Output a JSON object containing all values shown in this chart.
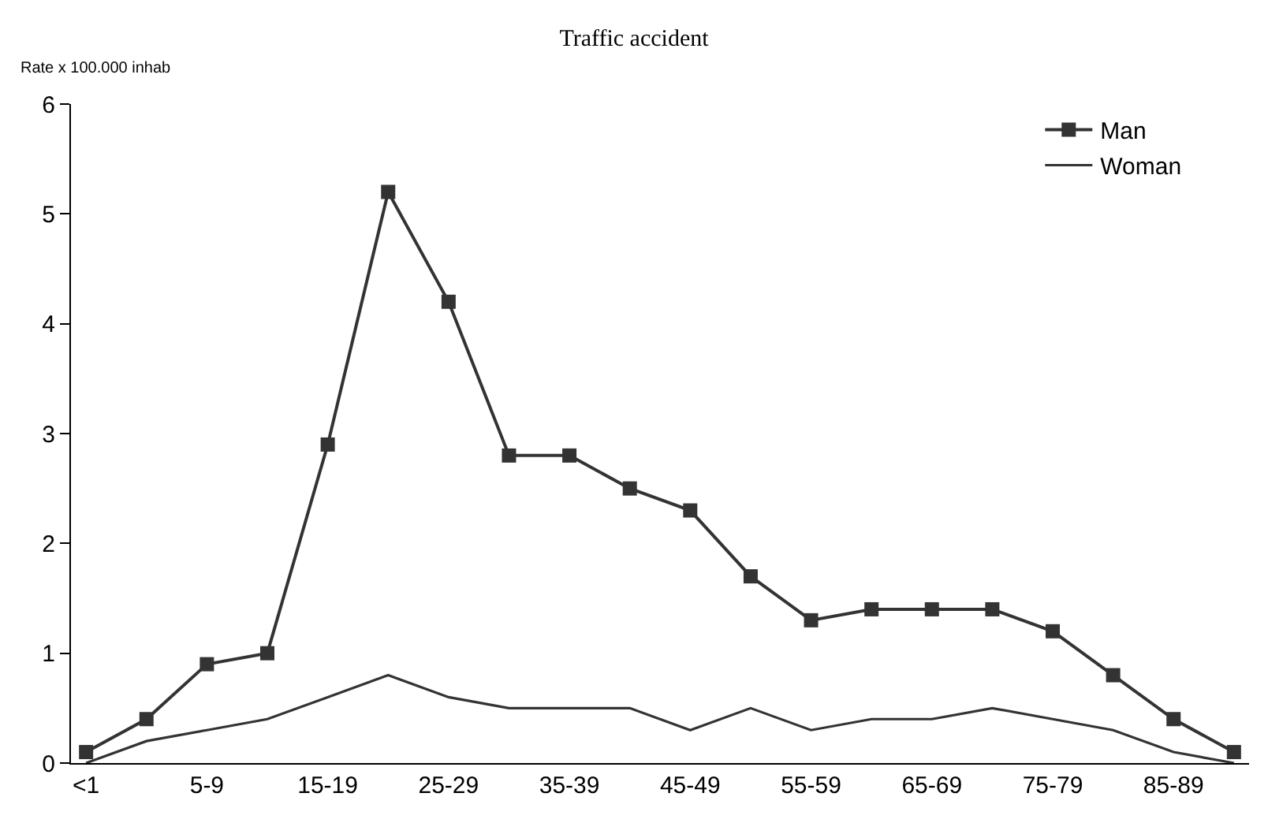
{
  "chart_data": {
    "type": "line",
    "title": "Traffic accident",
    "ylabel": "Rate x 100.000 inhab",
    "categories": [
      "<1",
      null,
      "5-9",
      null,
      "15-19",
      null,
      "25-29",
      null,
      "35-39",
      null,
      "45-49",
      null,
      "55-59",
      null,
      "65-69",
      null,
      "75-79",
      null,
      "85-89",
      null
    ],
    "series": [
      {
        "name": "Man",
        "color": "#333333",
        "marker": "square",
        "values": [
          0.1,
          0.4,
          0.9,
          1.0,
          2.9,
          5.2,
          4.2,
          2.8,
          2.8,
          2.5,
          2.3,
          1.7,
          1.3,
          1.4,
          1.4,
          1.4,
          1.2,
          0.8,
          0.4,
          0.1
        ]
      },
      {
        "name": "Woman",
        "color": "#333333",
        "marker": "none",
        "values": [
          0.0,
          0.2,
          0.3,
          0.4,
          0.6,
          0.8,
          0.6,
          0.5,
          0.5,
          0.5,
          0.3,
          0.5,
          0.3,
          0.4,
          0.4,
          0.5,
          0.4,
          0.3,
          0.1,
          0.0
        ]
      }
    ],
    "ylim": [
      0,
      6
    ],
    "yticks": [
      0,
      1,
      2,
      3,
      4,
      5,
      6
    ],
    "legend": "top right"
  }
}
